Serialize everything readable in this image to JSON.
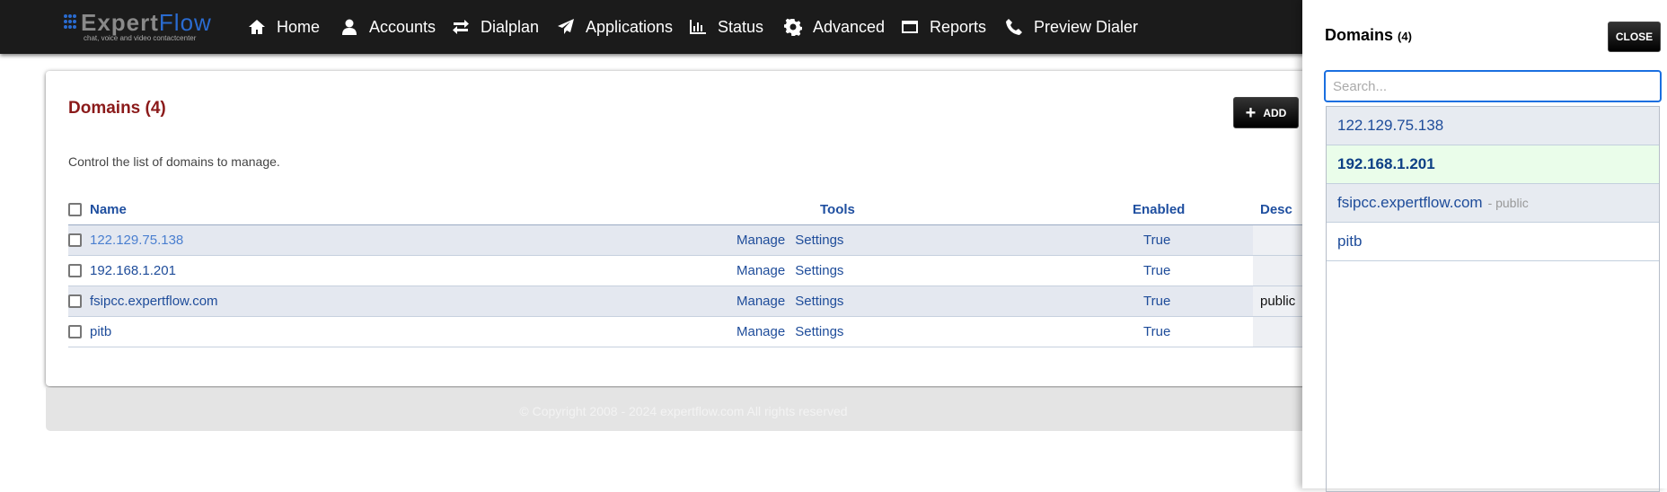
{
  "brand": {
    "name_part1": "Expert",
    "name_part2": "Flow",
    "tagline": "chat, voice and video contactcenter"
  },
  "nav": [
    {
      "label": "Home",
      "icon": "home-icon"
    },
    {
      "label": "Accounts",
      "icon": "user-icon"
    },
    {
      "label": "Dialplan",
      "icon": "exchange-icon"
    },
    {
      "label": "Applications",
      "icon": "paper-plane-icon"
    },
    {
      "label": "Status",
      "icon": "bar-chart-icon"
    },
    {
      "label": "Advanced",
      "icon": "gear-icon"
    },
    {
      "label": "Reports",
      "icon": "card-icon"
    },
    {
      "label": "Preview Dialer",
      "icon": "phone-icon"
    }
  ],
  "main": {
    "title": "Domains (4)",
    "add_label": "ADD",
    "description": "Control the list of domains to manage.",
    "columns": {
      "name": "Name",
      "tools": "Tools",
      "enabled": "Enabled",
      "description": "Desc"
    },
    "rows": [
      {
        "name": "122.129.75.138",
        "manage": "Manage",
        "settings": "Settings",
        "enabled": "True",
        "description": ""
      },
      {
        "name": "192.168.1.201",
        "manage": "Manage",
        "settings": "Settings",
        "enabled": "True",
        "description": ""
      },
      {
        "name": "fsipcc.expertflow.com",
        "manage": "Manage",
        "settings": "Settings",
        "enabled": "True",
        "description": "public"
      },
      {
        "name": "pitb",
        "manage": "Manage",
        "settings": "Settings",
        "enabled": "True",
        "description": ""
      }
    ]
  },
  "footer": {
    "copyright": "© Copyright 2008 - 2024 expertflow.com All rights reserved"
  },
  "panel": {
    "title": "Domains",
    "count": "(4)",
    "close_label": "CLOSE",
    "search_placeholder": "Search...",
    "items": [
      {
        "name": "122.129.75.138",
        "sub": ""
      },
      {
        "name": "192.168.1.201",
        "sub": ""
      },
      {
        "name": "fsipcc.expertflow.com",
        "sub": "- public"
      },
      {
        "name": "pitb",
        "sub": ""
      }
    ]
  },
  "colors": {
    "title": "#8b1a1a",
    "link": "#1e4c9a",
    "active_item": "#eafdea",
    "focus": "#1a6fe0"
  }
}
